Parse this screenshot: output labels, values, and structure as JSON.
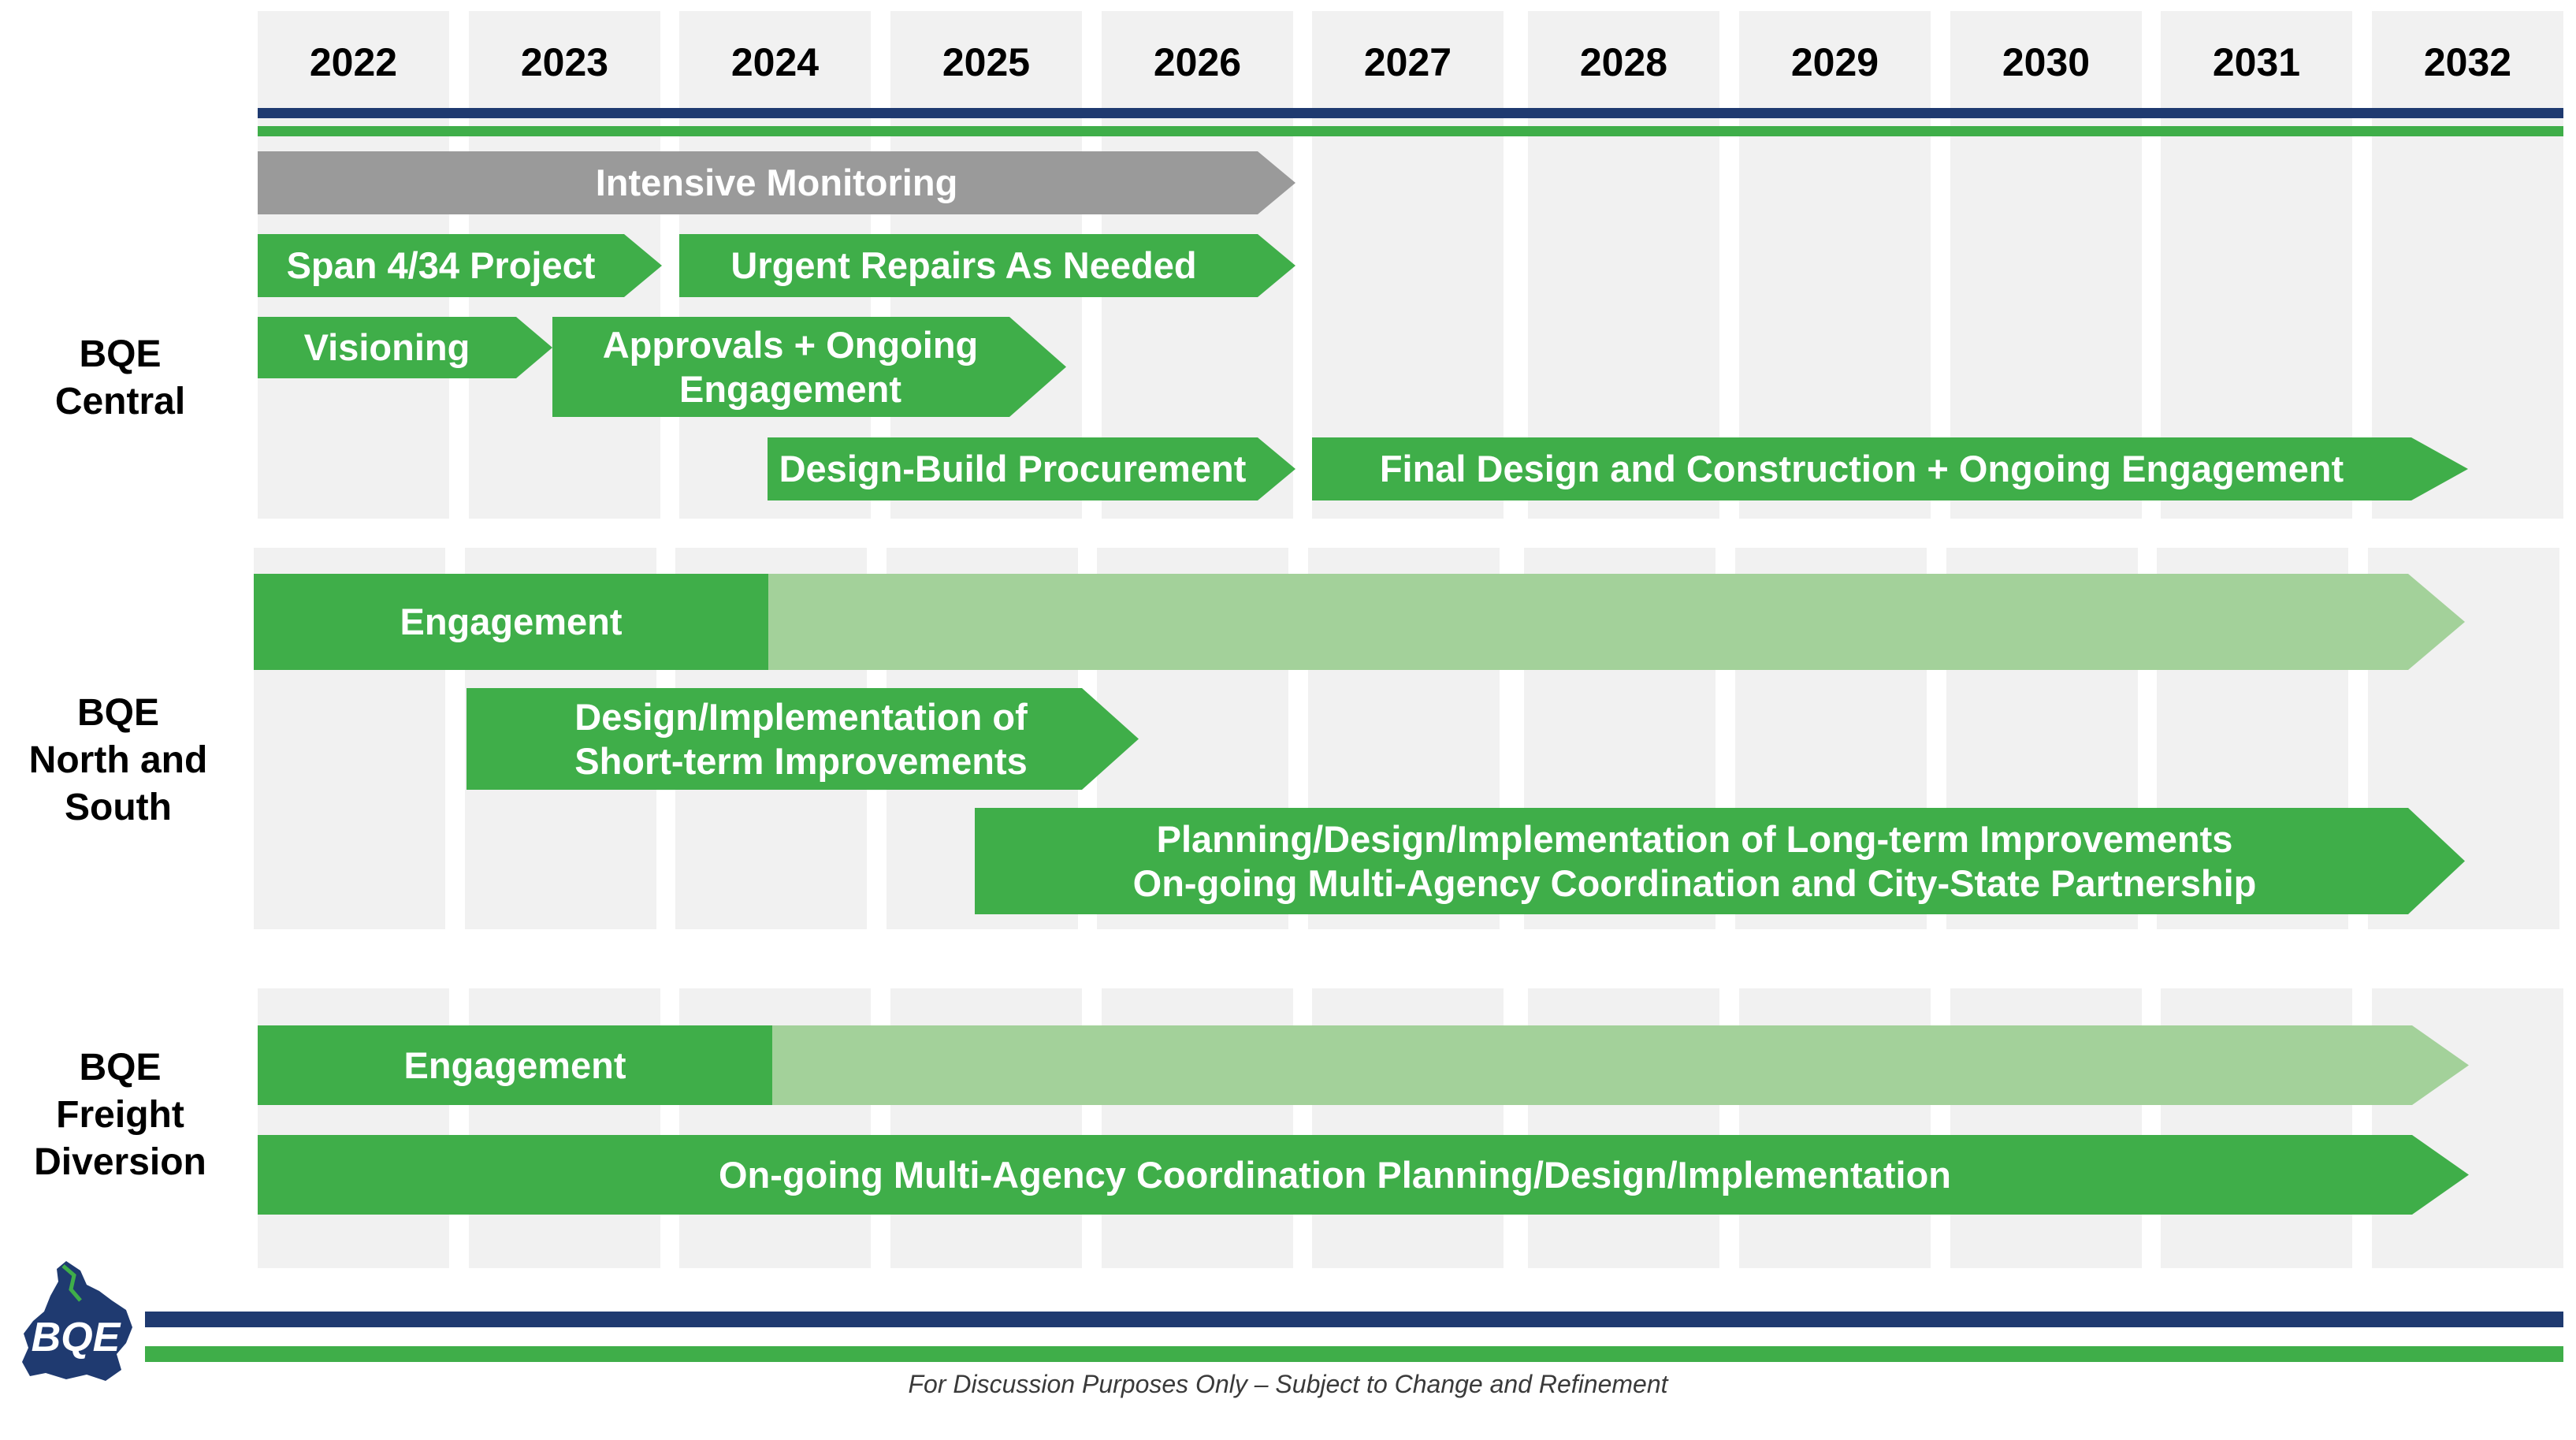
{
  "years": [
    "2022",
    "2023",
    "2024",
    "2025",
    "2026",
    "2027",
    "2028",
    "2029",
    "2030",
    "2031",
    "2032"
  ],
  "rows": [
    {
      "label": "BQE\nCentral"
    },
    {
      "label": "BQE\nNorth and\nSouth"
    },
    {
      "label": "BQE\nFreight\nDiversion"
    }
  ],
  "central": {
    "intensive_monitoring": "Intensive Monitoring",
    "span_project": "Span 4/34 Project",
    "urgent_repairs": "Urgent Repairs As Needed",
    "visioning": "Visioning",
    "approvals": "Approvals + Ongoing\nEngagement",
    "db_procurement": "Design-Build Procurement",
    "final_design": "Final Design and Construction + Ongoing Engagement"
  },
  "north_south": {
    "engagement": "Engagement",
    "short_term": "Design/Implementation of\nShort-term Improvements",
    "long_term": "Planning/Design/Implementation of Long-term Improvements\nOn-going Multi-Agency Coordination and City-State Partnership"
  },
  "freight": {
    "engagement": "Engagement",
    "coordination": "On-going Multi-Agency Coordination Planning/Design/Implementation"
  },
  "logo_text": "BQE",
  "footer": "For Discussion Purposes Only – Subject to Change and Refinement",
  "colors": {
    "navy": "#1f3a70",
    "green": "#3fae49",
    "light_green": "#a3d19a",
    "grey_bar": "#9a9a9a",
    "column_bg": "#f1f1f1"
  }
}
